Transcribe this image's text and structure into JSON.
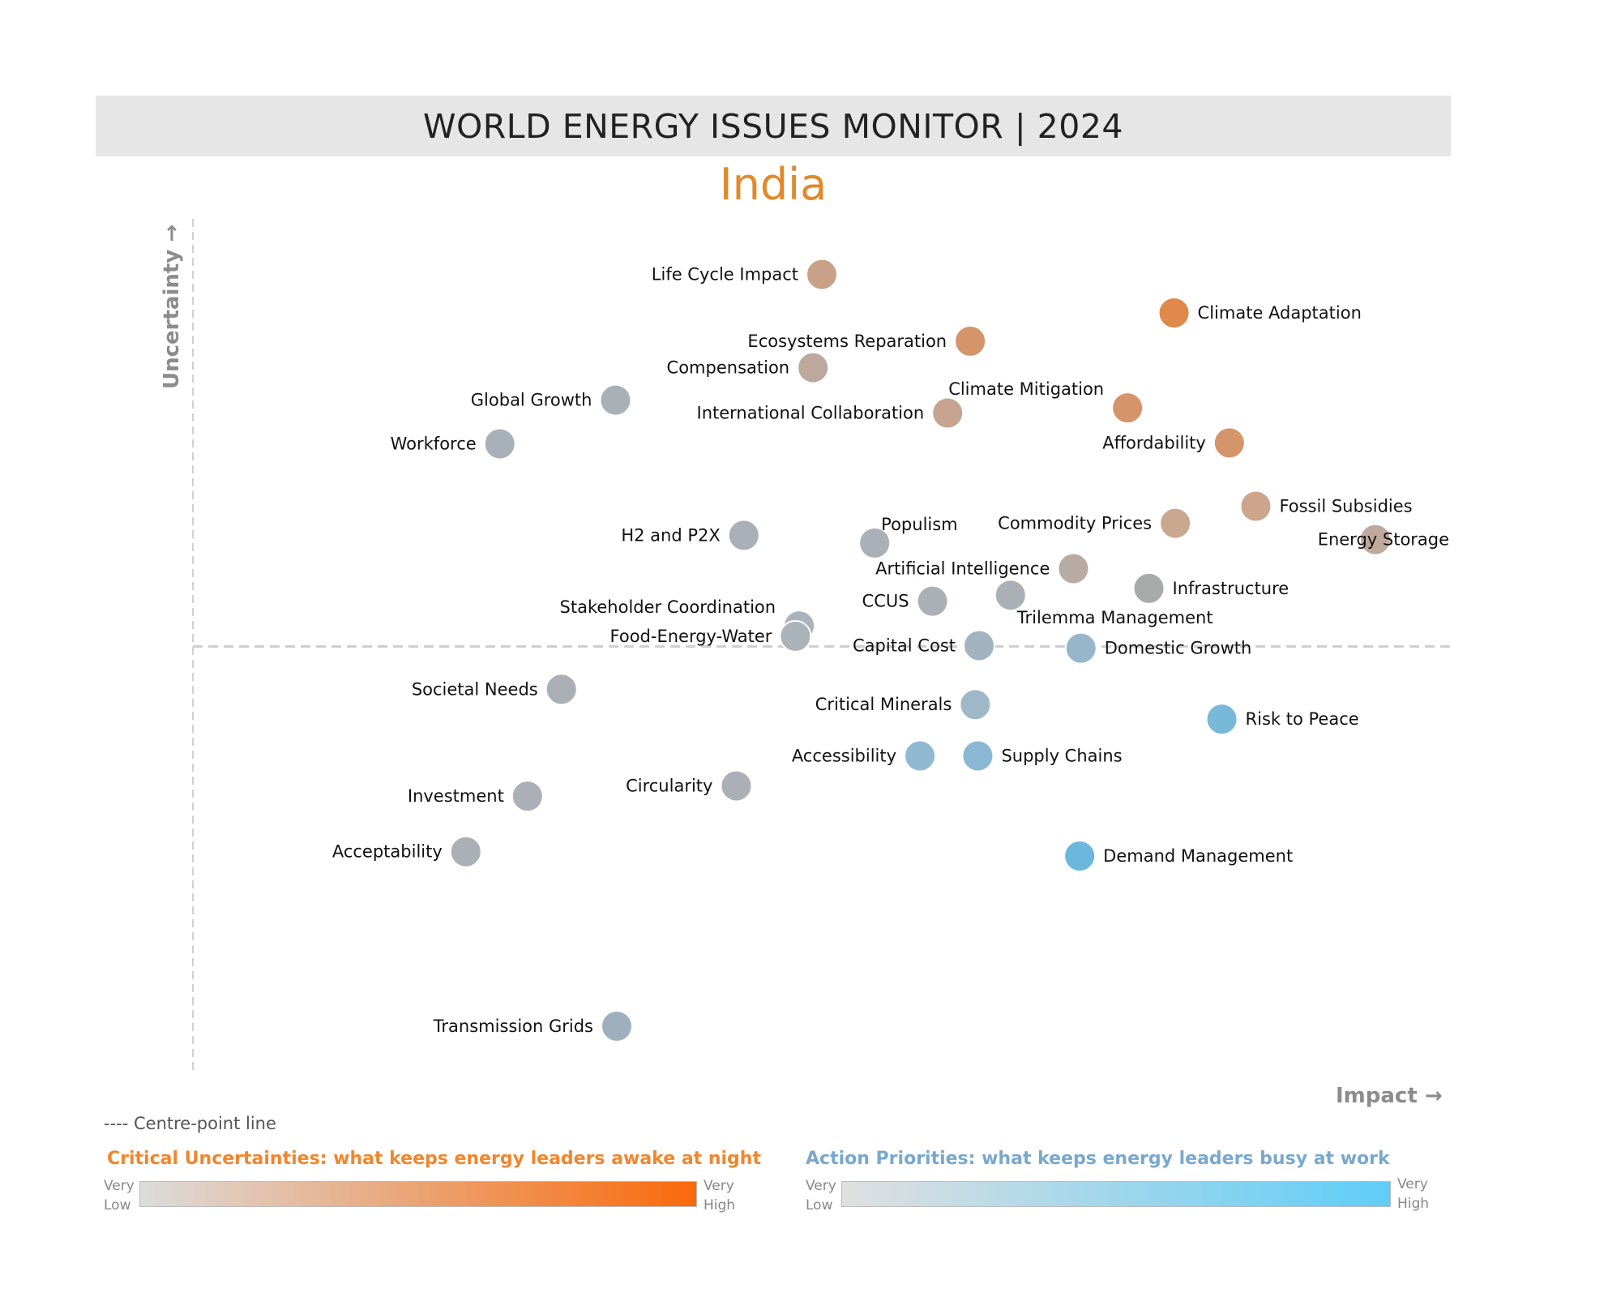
{
  "header": {
    "title": "WORLD ENERGY ISSUES MONITOR | 2024",
    "subtitle": "India"
  },
  "chart_data": {
    "type": "scatter",
    "title": "WORLD ENERGY ISSUES MONITOR | 2024",
    "subtitle": "India",
    "xlabel": "Impact",
    "ylabel": "Uncertainty",
    "x_range": [
      0,
      100
    ],
    "y_range": [
      0,
      100
    ],
    "centre_point": {
      "x": 50,
      "y": 50
    },
    "grid": false,
    "points": [
      {
        "label": "Life Cycle Impact",
        "x": 50.0,
        "y": 93.5,
        "color": "#c9a088",
        "label_side": "left"
      },
      {
        "label": "Climate Adaptation",
        "x": 78.0,
        "y": 89.0,
        "color": "#df8a4a",
        "label_side": "right"
      },
      {
        "label": "Ecosystems Reparation",
        "x": 61.8,
        "y": 85.7,
        "color": "#d4956a",
        "label_side": "left"
      },
      {
        "label": "Compensation",
        "x": 49.3,
        "y": 82.6,
        "color": "#bca89c",
        "label_side": "left"
      },
      {
        "label": "Global Growth",
        "x": 33.6,
        "y": 78.8,
        "color": "#a8b0b8",
        "label_side": "left"
      },
      {
        "label": "Climate Mitigation",
        "x": 74.3,
        "y": 77.9,
        "color": "#d6946a",
        "label_side": "above-left"
      },
      {
        "label": "International Collaboration",
        "x": 60.0,
        "y": 77.3,
        "color": "#c6a490",
        "label_side": "left"
      },
      {
        "label": "Workforce",
        "x": 24.4,
        "y": 73.7,
        "color": "#a8b0b8",
        "label_side": "left"
      },
      {
        "label": "Affordability",
        "x": 82.4,
        "y": 73.8,
        "color": "#d6946a",
        "label_side": "left"
      },
      {
        "label": "Fossil Subsidies",
        "x": 84.5,
        "y": 66.4,
        "color": "#cda48c",
        "label_side": "right"
      },
      {
        "label": "Commodity Prices",
        "x": 78.1,
        "y": 64.4,
        "color": "#c9a890",
        "label_side": "left"
      },
      {
        "label": "Energy Storage",
        "x": 94.0,
        "y": 62.5,
        "color": "#bfa99d",
        "label_side": "overlap"
      },
      {
        "label": "H2 and P2X",
        "x": 43.8,
        "y": 63.0,
        "color": "#a9b0b8",
        "label_side": "left"
      },
      {
        "label": "Populism",
        "x": 54.2,
        "y": 62.1,
        "color": "#a9b0b8",
        "label_side": "above-right"
      },
      {
        "label": "Artificial Intelligence",
        "x": 70.0,
        "y": 59.1,
        "color": "#b8aba4",
        "label_side": "left"
      },
      {
        "label": "Infrastructure",
        "x": 76.0,
        "y": 56.8,
        "color": "#a9abab",
        "label_side": "right"
      },
      {
        "label": "CCUS",
        "x": 58.8,
        "y": 55.3,
        "color": "#aab0b6",
        "label_side": "left"
      },
      {
        "label": "Trilemma Management",
        "x": 65.0,
        "y": 56.0,
        "color": "#aab0b6",
        "label_side": "below-right"
      },
      {
        "label": "Stakeholder Coordination",
        "x": 48.2,
        "y": 52.4,
        "color": "#aab2ba",
        "label_side": "above-left"
      },
      {
        "label": "Food-Energy-Water",
        "x": 47.9,
        "y": 51.2,
        "color": "#aab2ba",
        "label_side": "left"
      },
      {
        "label": "Capital Cost",
        "x": 62.5,
        "y": 50.1,
        "color": "#a3b4c0",
        "label_side": "left"
      },
      {
        "label": "Domestic Growth",
        "x": 70.6,
        "y": 49.8,
        "color": "#98b6ca",
        "label_side": "right"
      },
      {
        "label": "Societal Needs",
        "x": 29.3,
        "y": 45.0,
        "color": "#aab0b6",
        "label_side": "left"
      },
      {
        "label": "Critical Minerals",
        "x": 62.2,
        "y": 43.2,
        "color": "#9fb8c8",
        "label_side": "left"
      },
      {
        "label": "Risk to Peace",
        "x": 81.8,
        "y": 41.5,
        "color": "#78b8d8",
        "label_side": "right"
      },
      {
        "label": "Accessibility",
        "x": 57.8,
        "y": 37.2,
        "color": "#90bad2",
        "label_side": "left"
      },
      {
        "label": "Supply Chains",
        "x": 62.4,
        "y": 37.2,
        "color": "#8ab8d2",
        "label_side": "right"
      },
      {
        "label": "Circularity",
        "x": 43.2,
        "y": 33.7,
        "color": "#aab0b6",
        "label_side": "left"
      },
      {
        "label": "Investment",
        "x": 26.6,
        "y": 32.5,
        "color": "#aab0b6",
        "label_side": "left"
      },
      {
        "label": "Demand Management",
        "x": 70.5,
        "y": 25.5,
        "color": "#6cb8dc",
        "label_side": "right"
      },
      {
        "label": "Acceptability",
        "x": 21.7,
        "y": 26.0,
        "color": "#aab0b6",
        "label_side": "left"
      },
      {
        "label": "Transmission Grids",
        "x": 33.7,
        "y": 5.6,
        "color": "#9eb0be",
        "label_side": "left"
      }
    ],
    "legend": {
      "centre_line": "---- Centre-point line",
      "uncertainty_title": "Critical Uncertainties: what keeps energy leaders awake at night",
      "priority_title": "Action Priorities: what keeps energy leaders busy at work",
      "very": "Very",
      "low": "Low",
      "high": "High",
      "uncertainty_low_color": "#dcdcdc",
      "uncertainty_high_color": "#fa6a0a",
      "priority_low_color": "#e0e0e0",
      "priority_high_color": "#5fcdf8"
    }
  }
}
